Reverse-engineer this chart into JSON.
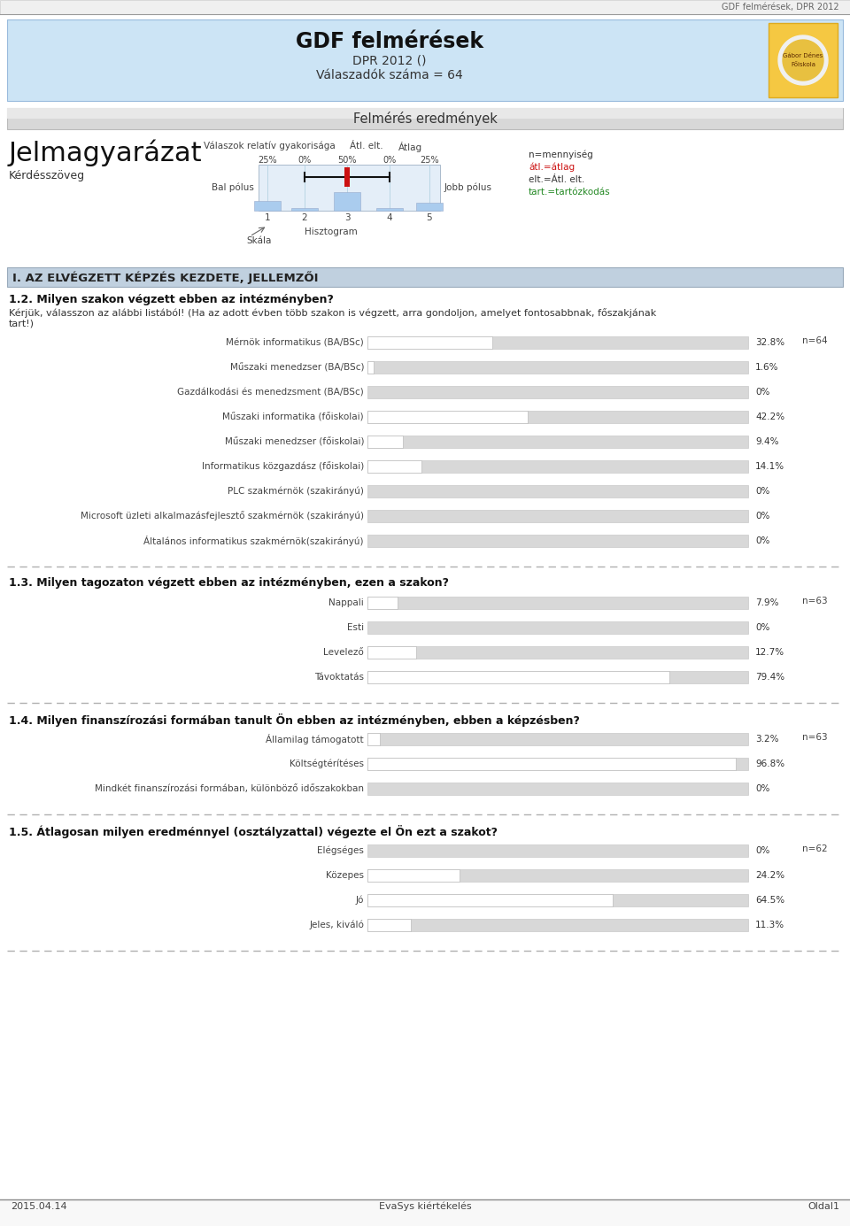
{
  "title": "GDF felmérések",
  "subtitle1": "DPR 2012 ()",
  "subtitle2": "Válaszadók száma = 64",
  "header_bg": "#cce4f5",
  "page_header": "GDF felmérések, DPR 2012",
  "section_title": "Felmérés eredmények",
  "legend_title": "Jelmagyarázat",
  "legend_subtitle": "Kérdésszöveg",
  "legend_label1": "Válaszok relatív gyakorisága",
  "legend_label2": "Átl. elt.",
  "legend_label3": "Átlag",
  "legend_bal": "Bal pólus",
  "legend_jobb": "Jobb pólus",
  "legend_pct1": "25%",
  "legend_pct2": "0%",
  "legend_pct3": "50%",
  "legend_pct4": "0%",
  "legend_pct5": "25%",
  "legend_skala": "Skála",
  "legend_hisztogram": "Hisztogram",
  "legend_n": "n=mennyiség",
  "legend_atl": "átl.=átlag",
  "legend_elt": "elt.=Átl. elt.",
  "legend_tart": "tart.=tartózkodás",
  "section1_title": "I. AZ ELVÉGZETT KÉPZÉS KEZDETE, JELLEMZŐI",
  "q12_title": "1.2. Milyen szakon végzett ebben az intézményben?",
  "q12_sub1": "Kérjük, válasszon az alábbi listából! (Ha az adott évben több szakon is végzett, arra gondoljon, amelyet fontosabbnak, főszakjának",
  "q12_sub2": "tart!)",
  "q12_n": "n=64",
  "q12_labels": [
    "Mérnök informatikus (BA/BSc)",
    "Műszaki menedzser (BA/BSc)",
    "Gazdálkodási és menedzsment (BA/BSc)",
    "Műszaki informatika (főiskolai)",
    "Műszaki menedzser (főiskolai)",
    "Informatikus közgazdász (főiskolai)",
    "PLC szakmérnök (szakirányú)",
    "Microsoft üzleti alkalmazásfejlesztő szakmérnök (szakirányú)",
    "Általános informatikus szakmérnök(szakirányú)"
  ],
  "q12_values": [
    32.8,
    1.6,
    0.0,
    42.2,
    9.4,
    14.1,
    0.0,
    0.0,
    0.0
  ],
  "q12_pcts": [
    "32.8%",
    "1.6%",
    "0%",
    "42.2%",
    "9.4%",
    "14.1%",
    "0%",
    "0%",
    "0%"
  ],
  "q13_title": "1.3. Milyen tagozaton végzett ebben az intézményben, ezen a szakon?",
  "q13_n": "n=63",
  "q13_labels": [
    "Nappali",
    "Esti",
    "Levelező",
    "Távoktatás"
  ],
  "q13_values": [
    7.9,
    0.0,
    12.7,
    79.4
  ],
  "q13_pcts": [
    "7.9%",
    "0%",
    "12.7%",
    "79.4%"
  ],
  "q14_title": "1.4. Milyen finanszírozási formában tanult Ön ebben az intézményben, ebben a képzésben?",
  "q14_n": "n=63",
  "q14_labels": [
    "Államilag támogatott",
    "Költségtérítéses",
    "Mindkét finanszírozási formában, különböző időszakokban"
  ],
  "q14_values": [
    3.2,
    96.8,
    0.0
  ],
  "q14_pcts": [
    "3.2%",
    "96.8%",
    "0%"
  ],
  "q15_title": "1.5. Átlagosan milyen eredménnyel (osztályzattal) végezte el Ön ezt a szakot?",
  "q15_n": "n=62",
  "q15_labels": [
    "Elégséges",
    "Közepes",
    "Jó",
    "Jeles, kiváló"
  ],
  "q15_values": [
    0.0,
    24.2,
    64.5,
    11.3
  ],
  "q15_pcts": [
    "0%",
    "24.2%",
    "64.5%",
    "11.3%"
  ],
  "footer_left": "2015.04.14",
  "footer_center": "EvaSys kiértékelés",
  "footer_right": "Oldal1",
  "bar_bg_color": "#d8d8d8",
  "bar_white_color": "#ffffff",
  "dashed_color": "#b0b0b0"
}
